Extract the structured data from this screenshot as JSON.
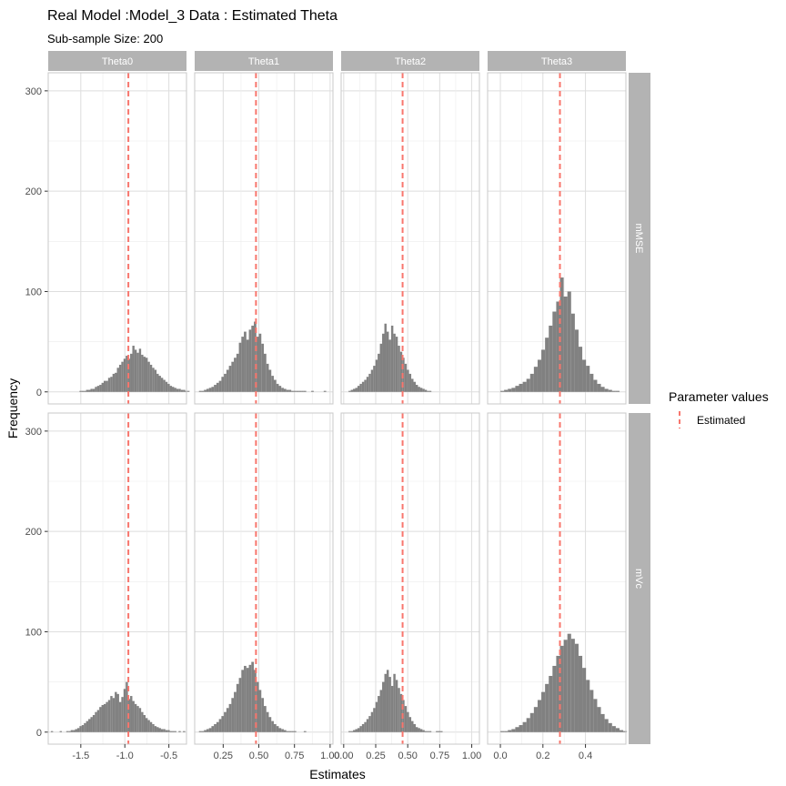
{
  "title": "Real Model :Model_3 Data : Estimated Theta",
  "subtitle": "Sub-sample Size: 200",
  "xlabel": "Estimates",
  "ylabel": "Frequency",
  "legend": {
    "title": "Parameter values",
    "items": [
      {
        "label": "Estimated",
        "color": "#F8766D"
      }
    ]
  },
  "colors": {
    "bar": "#7a7a7a",
    "strip": "#b3b3b3",
    "grid": "#dedede",
    "vline": "#F8766D"
  },
  "chart_data": {
    "type": "bar",
    "facet_cols": [
      "Theta0",
      "Theta1",
      "Theta2",
      "Theta3"
    ],
    "facet_rows": [
      "mMSE",
      "mVc"
    ],
    "ylim": [
      -12,
      318
    ],
    "yticks": [
      0,
      100,
      200,
      300
    ],
    "grid": true,
    "legend_position": "right",
    "panels": [
      {
        "row": "mMSE",
        "col": "Theta0",
        "estimated": -0.96,
        "xlim": [
          -1.87,
          -0.3
        ],
        "xticks": [
          -1.5,
          -1.0,
          -0.5
        ],
        "xtick_labels": [
          "-1.5",
          "-1.0",
          "-0.5"
        ],
        "bins": {
          "start": -1.84,
          "width": 0.025,
          "counts": [
            0,
            0,
            0,
            0,
            0,
            0,
            0,
            0,
            0,
            0,
            0,
            0,
            0,
            1,
            1,
            1,
            2,
            2,
            3,
            3,
            5,
            6,
            7,
            9,
            11,
            11,
            14,
            15,
            18,
            19,
            24,
            27,
            30,
            33,
            36,
            33,
            38,
            46,
            42,
            39,
            43,
            37,
            35,
            34,
            30,
            27,
            24,
            22,
            18,
            16,
            14,
            12,
            10,
            8,
            6,
            5,
            4,
            3,
            3,
            2,
            2,
            1,
            1
          ]
        }
      },
      {
        "row": "mMSE",
        "col": "Theta1",
        "estimated": 0.48,
        "xlim": [
          0.05,
          1.02
        ],
        "xticks": [
          0.25,
          0.5,
          0.75,
          1.0
        ],
        "xtick_labels": [
          "0.25",
          "0.50",
          "0.75",
          "1.00"
        ],
        "bins": {
          "start": 0.08,
          "width": 0.0175,
          "counts": [
            1,
            1,
            2,
            3,
            4,
            5,
            7,
            9,
            11,
            15,
            18,
            22,
            26,
            30,
            34,
            38,
            49,
            55,
            60,
            52,
            62,
            66,
            70,
            55,
            58,
            48,
            38,
            28,
            22,
            16,
            12,
            8,
            6,
            4,
            3,
            2,
            2,
            1,
            1,
            1,
            1,
            1,
            1,
            0,
            0,
            1,
            0,
            0,
            0,
            0,
            1
          ]
        }
      },
      {
        "row": "mMSE",
        "col": "Theta2",
        "estimated": 0.46,
        "xlim": [
          -0.02,
          1.06
        ],
        "xticks": [
          0.0,
          0.25,
          0.5,
          0.75,
          1.0
        ],
        "xtick_labels": [
          "0.00",
          "0.25",
          "0.50",
          "0.75",
          "1.00"
        ],
        "bins": {
          "start": 0.02,
          "width": 0.0175,
          "counts": [
            0,
            1,
            2,
            3,
            4,
            6,
            8,
            10,
            12,
            15,
            18,
            22,
            26,
            32,
            38,
            48,
            58,
            68,
            60,
            52,
            66,
            58,
            55,
            46,
            40,
            34,
            28,
            22,
            18,
            13,
            10,
            7,
            5,
            4,
            3,
            2,
            1,
            1,
            0,
            0,
            0,
            0,
            0,
            0,
            0,
            0,
            0,
            0,
            0,
            0
          ]
        }
      },
      {
        "row": "mMSE",
        "col": "Theta3",
        "estimated": 0.28,
        "xlim": [
          -0.06,
          0.59
        ],
        "xticks": [
          0.0,
          0.2,
          0.4
        ],
        "xtick_labels": [
          "0.0",
          "0.2",
          "0.4"
        ],
        "bins": {
          "start": 0.0,
          "width": 0.0175,
          "counts": [
            1,
            2,
            3,
            4,
            6,
            8,
            10,
            13,
            18,
            25,
            32,
            42,
            54,
            66,
            80,
            90,
            114,
            95,
            100,
            78,
            62,
            45,
            32,
            26,
            18,
            12,
            8,
            5,
            3,
            2,
            1,
            1
          ]
        }
      },
      {
        "row": "mVc",
        "col": "Theta0",
        "estimated": -0.96,
        "xlim": [
          -1.87,
          -0.3
        ],
        "xticks": [
          -1.5,
          -1.0,
          -0.5
        ],
        "xtick_labels": [
          "-1.5",
          "-1.0",
          "-0.5"
        ],
        "bins": {
          "start": -1.84,
          "width": 0.025,
          "counts": [
            1,
            0,
            0,
            0,
            1,
            0,
            0,
            1,
            1,
            2,
            2,
            3,
            4,
            6,
            7,
            9,
            11,
            13,
            15,
            17,
            20,
            22,
            25,
            27,
            28,
            30,
            32,
            36,
            34,
            40,
            38,
            30,
            35,
            43,
            50,
            33,
            36,
            31,
            28,
            26,
            24,
            20,
            17,
            14,
            12,
            10,
            8,
            6,
            5,
            4,
            3,
            3,
            2,
            2,
            1,
            1,
            1,
            0,
            1,
            0,
            1,
            0
          ]
        }
      },
      {
        "row": "mVc",
        "col": "Theta1",
        "estimated": 0.48,
        "xlim": [
          0.05,
          1.02
        ],
        "xticks": [
          0.25,
          0.5,
          0.75,
          1.0
        ],
        "xtick_labels": [
          "0.25",
          "0.50",
          "0.75",
          "1.00"
        ],
        "bins": {
          "start": 0.08,
          "width": 0.0175,
          "counts": [
            1,
            1,
            2,
            3,
            4,
            6,
            8,
            10,
            13,
            16,
            20,
            24,
            28,
            34,
            40,
            48,
            54,
            62,
            66,
            64,
            67,
            70,
            62,
            50,
            42,
            34,
            26,
            20,
            15,
            11,
            8,
            6,
            4,
            3,
            2,
            1,
            1,
            1,
            1,
            0,
            0,
            0,
            1,
            0,
            0,
            0
          ]
        }
      },
      {
        "row": "mVc",
        "col": "Theta2",
        "estimated": 0.46,
        "xlim": [
          -0.02,
          1.06
        ],
        "xticks": [
          0.0,
          0.25,
          0.5,
          0.75,
          1.0
        ],
        "xtick_labels": [
          "0.00",
          "0.25",
          "0.50",
          "0.75",
          "1.00"
        ],
        "bins": {
          "start": 0.02,
          "width": 0.0175,
          "counts": [
            0,
            1,
            1,
            2,
            3,
            4,
            6,
            8,
            10,
            13,
            16,
            20,
            24,
            30,
            36,
            42,
            50,
            58,
            62,
            55,
            46,
            58,
            52,
            44,
            38,
            32,
            26,
            20,
            15,
            11,
            8,
            5,
            4,
            3,
            2,
            1,
            1,
            1,
            0,
            0,
            1,
            1,
            1
          ]
        }
      },
      {
        "row": "mVc",
        "col": "Theta3",
        "estimated": 0.28,
        "xlim": [
          -0.06,
          0.59
        ],
        "xticks": [
          0.0,
          0.2,
          0.4
        ],
        "xtick_labels": [
          "0.0",
          "0.2",
          "0.4"
        ],
        "bins": {
          "start": 0.0,
          "width": 0.0175,
          "counts": [
            1,
            1,
            2,
            3,
            5,
            7,
            10,
            14,
            19,
            25,
            32,
            40,
            48,
            56,
            66,
            76,
            86,
            92,
            98,
            93,
            88,
            76,
            64,
            52,
            42,
            33,
            25,
            18,
            13,
            9,
            6,
            4,
            2,
            1
          ]
        }
      }
    ]
  }
}
